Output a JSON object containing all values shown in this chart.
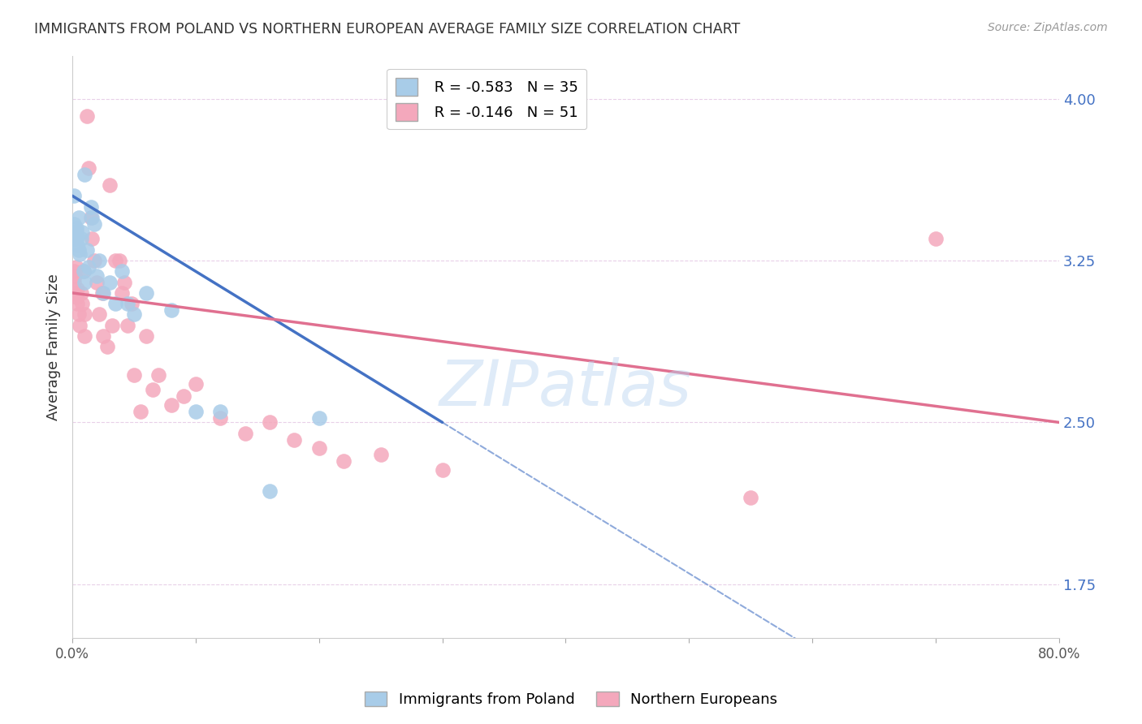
{
  "title": "IMMIGRANTS FROM POLAND VS NORTHERN EUROPEAN AVERAGE FAMILY SIZE CORRELATION CHART",
  "source": "Source: ZipAtlas.com",
  "ylabel": "Average Family Size",
  "yticks": [
    1.75,
    2.5,
    3.25,
    4.0
  ],
  "ylim": [
    1.5,
    4.2
  ],
  "xlim": [
    0.0,
    0.8
  ],
  "legend1_r": "R = -0.583",
  "legend1_n": "N = 35",
  "legend2_r": "R = -0.146",
  "legend2_n": "N = 51",
  "poland_color": "#a8cce8",
  "northern_color": "#f4a8bc",
  "poland_line_color": "#4472c4",
  "northern_line_color": "#e07090",
  "poland_scatter": [
    [
      0.001,
      3.55
    ],
    [
      0.001,
      3.42
    ],
    [
      0.002,
      3.38
    ],
    [
      0.002,
      3.35
    ],
    [
      0.003,
      3.4
    ],
    [
      0.003,
      3.38
    ],
    [
      0.004,
      3.36
    ],
    [
      0.004,
      3.32
    ],
    [
      0.005,
      3.3
    ],
    [
      0.005,
      3.45
    ],
    [
      0.006,
      3.28
    ],
    [
      0.007,
      3.35
    ],
    [
      0.008,
      3.38
    ],
    [
      0.009,
      3.2
    ],
    [
      0.01,
      3.15
    ],
    [
      0.01,
      3.65
    ],
    [
      0.012,
      3.3
    ],
    [
      0.013,
      3.22
    ],
    [
      0.015,
      3.5
    ],
    [
      0.016,
      3.45
    ],
    [
      0.018,
      3.42
    ],
    [
      0.02,
      3.18
    ],
    [
      0.022,
      3.25
    ],
    [
      0.025,
      3.1
    ],
    [
      0.03,
      3.15
    ],
    [
      0.035,
      3.05
    ],
    [
      0.04,
      3.2
    ],
    [
      0.045,
      3.05
    ],
    [
      0.05,
      3.0
    ],
    [
      0.06,
      3.1
    ],
    [
      0.08,
      3.02
    ],
    [
      0.1,
      2.55
    ],
    [
      0.12,
      2.55
    ],
    [
      0.16,
      2.18
    ],
    [
      0.2,
      2.52
    ]
  ],
  "northern_scatter": [
    [
      0.001,
      3.2
    ],
    [
      0.001,
      3.15
    ],
    [
      0.002,
      3.18
    ],
    [
      0.002,
      3.1
    ],
    [
      0.003,
      3.22
    ],
    [
      0.003,
      3.08
    ],
    [
      0.004,
      3.05
    ],
    [
      0.004,
      3.12
    ],
    [
      0.005,
      3.0
    ],
    [
      0.006,
      2.95
    ],
    [
      0.007,
      3.1
    ],
    [
      0.008,
      3.05
    ],
    [
      0.009,
      3.2
    ],
    [
      0.01,
      3.0
    ],
    [
      0.01,
      2.9
    ],
    [
      0.012,
      3.92
    ],
    [
      0.013,
      3.68
    ],
    [
      0.015,
      3.45
    ],
    [
      0.016,
      3.35
    ],
    [
      0.018,
      3.25
    ],
    [
      0.02,
      3.15
    ],
    [
      0.022,
      3.0
    ],
    [
      0.024,
      3.1
    ],
    [
      0.025,
      2.9
    ],
    [
      0.028,
      2.85
    ],
    [
      0.03,
      3.6
    ],
    [
      0.032,
      2.95
    ],
    [
      0.035,
      3.25
    ],
    [
      0.038,
      3.25
    ],
    [
      0.04,
      3.1
    ],
    [
      0.042,
      3.15
    ],
    [
      0.045,
      2.95
    ],
    [
      0.048,
      3.05
    ],
    [
      0.05,
      2.72
    ],
    [
      0.055,
      2.55
    ],
    [
      0.06,
      2.9
    ],
    [
      0.065,
      2.65
    ],
    [
      0.07,
      2.72
    ],
    [
      0.08,
      2.58
    ],
    [
      0.09,
      2.62
    ],
    [
      0.1,
      2.68
    ],
    [
      0.12,
      2.52
    ],
    [
      0.14,
      2.45
    ],
    [
      0.16,
      2.5
    ],
    [
      0.18,
      2.42
    ],
    [
      0.2,
      2.38
    ],
    [
      0.22,
      2.32
    ],
    [
      0.25,
      2.35
    ],
    [
      0.3,
      2.28
    ],
    [
      0.55,
      2.15
    ],
    [
      0.7,
      3.35
    ]
  ],
  "background_color": "#ffffff",
  "grid_color": "#e8d0e8",
  "watermark": "ZIPatlas"
}
